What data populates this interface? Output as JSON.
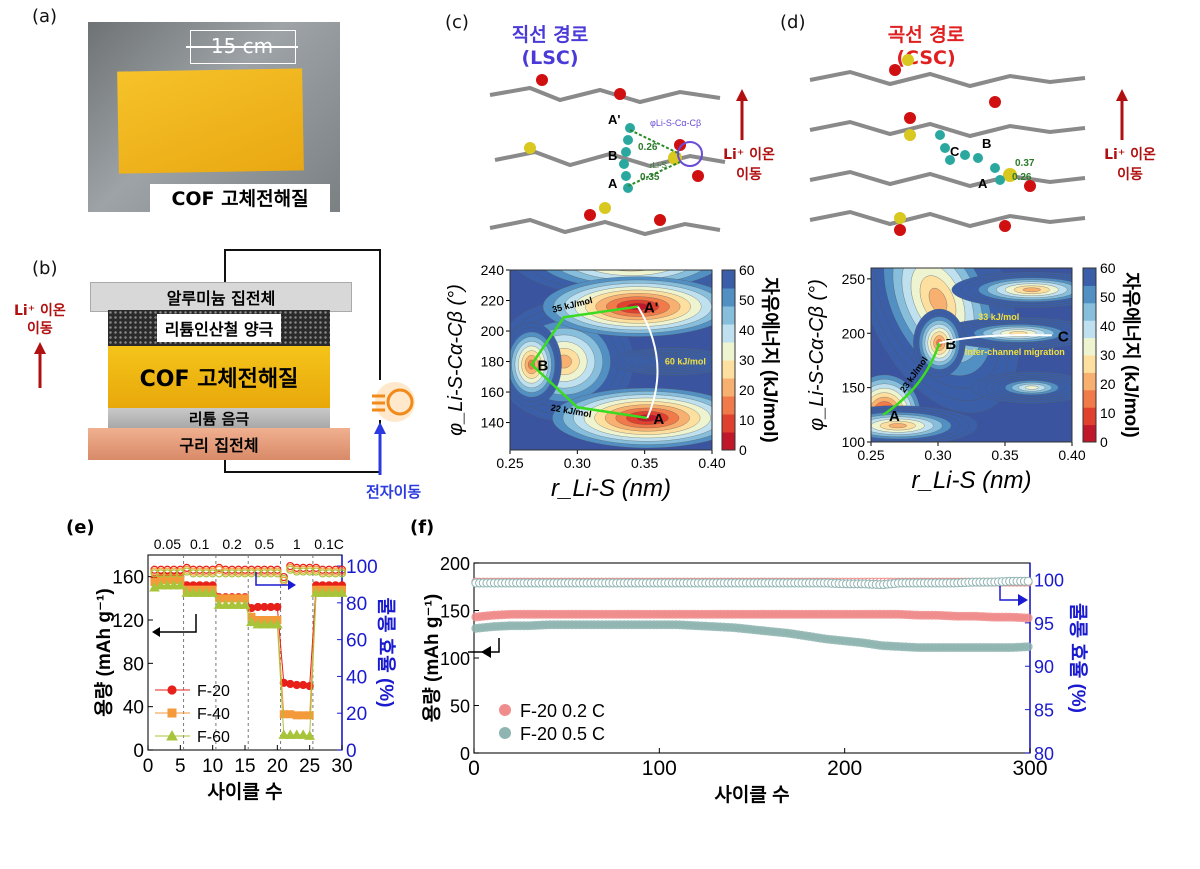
{
  "panels": {
    "a": {
      "label": "(a)",
      "dimension": "15 cm",
      "caption": "COF 고체전해질"
    },
    "b": {
      "label": "(b)",
      "layers": [
        "알루미늄 집전체",
        "리튬인산철 양극",
        "COF 고체전해질",
        "리튬 음극",
        "구리 집전체"
      ],
      "ion_label_1": "Li⁺ 이온",
      "ion_label_2": "이동",
      "electron_label": "전자이동"
    },
    "c": {
      "label": "(c)",
      "title": "직선 경로 (LSC)",
      "ion_label_1": "Li⁺ 이온",
      "ion_label_2": "이동",
      "atoms": [
        "A'",
        "B",
        "A"
      ],
      "dists": [
        "0.26",
        "0.35"
      ],
      "phi_label": "φLi-S-Cα-Cβ",
      "r_label": "rLi-S"
    },
    "d": {
      "label": "(d)",
      "title": "곡선 경로 (CSC)",
      "ion_label_1": "Li⁺ 이온",
      "ion_label_2": "이동",
      "atoms": [
        "C",
        "B",
        "A"
      ],
      "dists": [
        "0.37",
        "0.26"
      ]
    },
    "e": {
      "label": "(e)"
    },
    "f": {
      "label": "(f)"
    }
  },
  "colors": {
    "accent_blue": "#1a1ad0",
    "accent_red": "#b01010",
    "lsc_title": "#4a3ad8",
    "csc_title": "#e02020"
  },
  "chart_data": [
    {
      "id": "c",
      "type": "heatmap",
      "xlabel": "r_Li-S (nm)",
      "ylabel": "φ_Li-S-Cα-Cβ (°)",
      "xlim": [
        0.25,
        0.4
      ],
      "ylim": [
        122,
        240
      ],
      "xticks": [
        "0.25",
        "0.30",
        "0.35",
        "0.40"
      ],
      "yticks": [
        "140",
        "160",
        "180",
        "200",
        "220",
        "240"
      ],
      "colorbar": {
        "label": "자유에너지 (kJ/mol)",
        "range": [
          0,
          60
        ],
        "ticks": [
          "0",
          "10",
          "20",
          "30",
          "40",
          "50",
          "60"
        ]
      },
      "minima": [
        {
          "name": "A'",
          "x": 0.345,
          "y": 216
        },
        {
          "name": "B",
          "x": 0.266,
          "y": 178
        },
        {
          "name": "A",
          "x": 0.352,
          "y": 143
        }
      ],
      "annotations": [
        "35 kJ/mol",
        "22 kJ/mol",
        "60 kJ/mol"
      ]
    },
    {
      "id": "d",
      "type": "heatmap",
      "xlabel": "r_Li-S (nm)",
      "ylabel": "φ_Li-S-Cα-Cβ (°)",
      "xlim": [
        0.25,
        0.4
      ],
      "ylim": [
        100,
        260
      ],
      "xticks": [
        "0.25",
        "0.30",
        "0.35",
        "0.40"
      ],
      "yticks": [
        "100",
        "150",
        "200",
        "250"
      ],
      "colorbar": {
        "label": "자유에너지 (kJ/mol)",
        "range": [
          0,
          60
        ],
        "ticks": [
          "0",
          "10",
          "20",
          "30",
          "40",
          "50",
          "60"
        ]
      },
      "minima": [
        {
          "name": "A",
          "x": 0.259,
          "y": 125
        },
        {
          "name": "B",
          "x": 0.301,
          "y": 191
        },
        {
          "name": "C",
          "x": 0.385,
          "y": 198
        }
      ],
      "annotations": [
        "23 kJ/mol",
        "33 kJ/mol",
        "Inter-channel migration"
      ]
    },
    {
      "id": "e",
      "type": "scatter",
      "xlabel": "사이클 수",
      "ylabel": "용량 (mAh g⁻¹)",
      "y2label": "쿨롱 효율 (%)",
      "xlim": [
        0,
        30
      ],
      "ylim": [
        0,
        180
      ],
      "y2lim": [
        0,
        106
      ],
      "xticks": [
        "0",
        "5",
        "10",
        "15",
        "20",
        "25",
        "30"
      ],
      "yticks": [
        "0",
        "40",
        "80",
        "120",
        "160"
      ],
      "y2ticks": [
        "0",
        "20",
        "40",
        "60",
        "80",
        "100"
      ],
      "rate_labels": [
        "0.05",
        "0.1",
        "0.2",
        "0.5",
        "1",
        "0.1C"
      ],
      "x": [
        1,
        2,
        3,
        4,
        5,
        6,
        7,
        8,
        9,
        10,
        11,
        12,
        13,
        14,
        15,
        16,
        17,
        18,
        19,
        20,
        21,
        22,
        23,
        24,
        25,
        26,
        27,
        28,
        29,
        30
      ],
      "series": [
        {
          "name": "F-20",
          "color": "#e8201a",
          "marker": "circle",
          "values": [
            158,
            160,
            160,
            160,
            160,
            152,
            152,
            152,
            152,
            152,
            141,
            141,
            141,
            141,
            141,
            131,
            132,
            132,
            132,
            132,
            62,
            61,
            60,
            60,
            59,
            152,
            152,
            152,
            152,
            152
          ],
          "efficiency": [
            98,
            98,
            98,
            98,
            98,
            99,
            98,
            98,
            98,
            98,
            99,
            98,
            98,
            98,
            98,
            98,
            98,
            98,
            98,
            98,
            94,
            100,
            99,
            99,
            99,
            99,
            98,
            98,
            98,
            98
          ]
        },
        {
          "name": "F-40",
          "color": "#f59a3a",
          "marker": "square",
          "values": [
            155,
            157,
            157,
            157,
            157,
            148,
            148,
            148,
            148,
            148,
            140,
            140,
            140,
            140,
            140,
            123,
            120,
            120,
            120,
            120,
            33,
            33,
            32,
            32,
            32,
            148,
            148,
            148,
            148,
            148
          ],
          "efficiency": [
            97,
            97,
            97,
            97,
            97,
            98,
            97,
            97,
            97,
            97,
            98,
            97,
            97,
            97,
            97,
            97,
            97,
            97,
            97,
            97,
            92,
            99,
            98,
            98,
            98,
            98,
            97,
            97,
            97,
            97
          ]
        },
        {
          "name": "F-60",
          "color": "#a8c43a",
          "marker": "triangle",
          "values": [
            150,
            152,
            152,
            152,
            152,
            145,
            145,
            145,
            145,
            145,
            134,
            134,
            134,
            134,
            134,
            118,
            116,
            116,
            116,
            116,
            14,
            14,
            14,
            14,
            13,
            145,
            145,
            145,
            145,
            145
          ],
          "efficiency": [
            96,
            96,
            96,
            96,
            96,
            97,
            96,
            96,
            96,
            96,
            96,
            96,
            96,
            96,
            96,
            96,
            96,
            96,
            96,
            96,
            93,
            98,
            97,
            97,
            97,
            97,
            96,
            96,
            96,
            96
          ]
        }
      ]
    },
    {
      "id": "f",
      "type": "scatter",
      "xlabel": "사이클 수",
      "ylabel": "용량 (mAh g⁻¹)",
      "y2label": "쿨롱 효율 (%)",
      "xlim": [
        0,
        300
      ],
      "ylim": [
        0,
        200
      ],
      "y2lim": [
        80,
        101.9
      ],
      "xticks": [
        "0",
        "100",
        "200",
        "300"
      ],
      "yticks": [
        "0",
        "50",
        "100",
        "150",
        "200"
      ],
      "y2ticks": [
        "80",
        "85",
        "90",
        "95",
        "100"
      ],
      "x": [
        0,
        10,
        20,
        30,
        40,
        50,
        60,
        70,
        80,
        90,
        100,
        110,
        120,
        130,
        140,
        150,
        160,
        170,
        180,
        190,
        200,
        210,
        220,
        230,
        240,
        250,
        260,
        270,
        280,
        290,
        300
      ],
      "series": [
        {
          "name": "F-20  0.2 C",
          "color": "#f08c8c",
          "values": [
            143,
            145,
            146,
            146,
            146,
            146,
            146,
            146,
            146,
            146,
            146,
            146,
            146,
            146,
            146,
            146,
            146,
            146,
            146,
            146,
            146,
            146,
            146,
            146,
            145,
            145,
            144,
            144,
            143,
            143,
            142
          ],
          "efficiency": [
            99.7,
            99.7,
            99.7,
            99.7,
            99.7,
            99.7,
            99.7,
            99.7,
            99.7,
            99.7,
            99.7,
            99.7,
            99.7,
            99.7,
            99.7,
            99.7,
            99.7,
            99.7,
            99.7,
            99.7,
            99.7,
            99.7,
            99.7,
            99.7,
            99.7,
            99.7,
            99.7,
            99.7,
            99.7,
            99.7,
            99.7
          ]
        },
        {
          "name": "F-20  0.5 C",
          "color": "#8fb5b2",
          "values": [
            131,
            133,
            134,
            134,
            135,
            135,
            135,
            135,
            135,
            135,
            135,
            135,
            134,
            133,
            132,
            130,
            128,
            126,
            123,
            120,
            118,
            116,
            113,
            112,
            111,
            111,
            111,
            111,
            111,
            111,
            112
          ],
          "efficiency": [
            99.6,
            99.6,
            99.6,
            99.6,
            99.6,
            99.6,
            99.6,
            99.6,
            99.6,
            99.6,
            99.6,
            99.6,
            99.6,
            99.6,
            99.6,
            99.6,
            99.6,
            99.6,
            99.6,
            99.6,
            99.5,
            99.5,
            99.4,
            99.6,
            99.6,
            99.6,
            99.6,
            99.7,
            99.7,
            99.8,
            99.8
          ]
        }
      ]
    }
  ]
}
